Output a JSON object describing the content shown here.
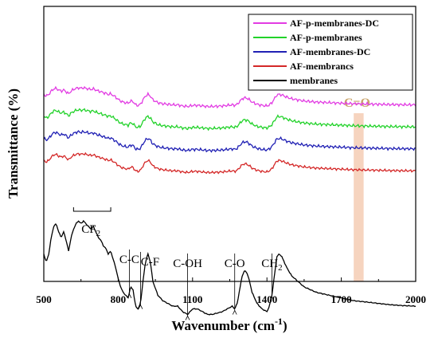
{
  "chart_data": {
    "type": "line",
    "xlabel": "Wavenumber (cm",
    "xlabel_sup": "-1",
    "xlabel_end": ")",
    "ylabel": "Transmittance (%)",
    "xlim": [
      500,
      2000
    ],
    "ylim": [
      0,
      100
    ],
    "x_ticks": [
      500,
      800,
      1100,
      1400,
      1700,
      2000
    ],
    "grid": false,
    "legend_position": "top-right",
    "colors": {
      "AF-p-membranes-DC": "#e23ce3",
      "AF-p-membranes": "#22d22a",
      "AF-membranes-DC": "#2020b4",
      "AF-membrancs": "#d42828",
      "membranes": "#000000",
      "highlight": "#f4cdb4",
      "highlight_label": "#c9a46c"
    },
    "series": [
      {
        "name": "AF-p-membranes-DC",
        "offset": 38,
        "noise": 0.35,
        "scale": 0.2
      },
      {
        "name": "AF-p-membranes",
        "offset": 30,
        "noise": 0.35,
        "scale": 0.2
      },
      {
        "name": "AF-membranes-DC",
        "offset": 22,
        "noise": 0.35,
        "scale": 0.2
      },
      {
        "name": "AF-membrancs",
        "offset": 14,
        "noise": 0.3,
        "scale": 0.2
      },
      {
        "name": "membranes",
        "offset": 0,
        "noise": 0.1,
        "scale": 1
      }
    ],
    "base_spectrum": [
      [
        500,
        30
      ],
      [
        510,
        27
      ],
      [
        520,
        30
      ],
      [
        530,
        36
      ],
      [
        540,
        40
      ],
      [
        550,
        41
      ],
      [
        560,
        38
      ],
      [
        570,
        36
      ],
      [
        580,
        38
      ],
      [
        590,
        35
      ],
      [
        600,
        31
      ],
      [
        610,
        36
      ],
      [
        620,
        39
      ],
      [
        630,
        41
      ],
      [
        640,
        42
      ],
      [
        650,
        41
      ],
      [
        660,
        42
      ],
      [
        670,
        41
      ],
      [
        680,
        40
      ],
      [
        690,
        39
      ],
      [
        700,
        40
      ],
      [
        710,
        38
      ],
      [
        720,
        36
      ],
      [
        730,
        35
      ],
      [
        740,
        33
      ],
      [
        750,
        32
      ],
      [
        760,
        30
      ],
      [
        770,
        31
      ],
      [
        780,
        28
      ],
      [
        790,
        25
      ],
      [
        800,
        21
      ],
      [
        810,
        18
      ],
      [
        820,
        16
      ],
      [
        830,
        15
      ],
      [
        840,
        14
      ],
      [
        850,
        18
      ],
      [
        860,
        17
      ],
      [
        870,
        11
      ],
      [
        880,
        10
      ],
      [
        890,
        12
      ],
      [
        900,
        20
      ],
      [
        910,
        27
      ],
      [
        920,
        30
      ],
      [
        930,
        27
      ],
      [
        940,
        20
      ],
      [
        960,
        15
      ],
      [
        980,
        13
      ],
      [
        1000,
        12
      ],
      [
        1020,
        11
      ],
      [
        1040,
        11
      ],
      [
        1060,
        9
      ],
      [
        1080,
        8
      ],
      [
        1100,
        10
      ],
      [
        1120,
        10
      ],
      [
        1140,
        9
      ],
      [
        1160,
        8
      ],
      [
        1180,
        8
      ],
      [
        1200,
        8.5
      ],
      [
        1220,
        9
      ],
      [
        1240,
        10
      ],
      [
        1260,
        11
      ],
      [
        1270,
        10
      ],
      [
        1280,
        12
      ],
      [
        1290,
        17
      ],
      [
        1300,
        22
      ],
      [
        1310,
        24
      ],
      [
        1320,
        23
      ],
      [
        1330,
        20
      ],
      [
        1340,
        16
      ],
      [
        1360,
        12
      ],
      [
        1380,
        10
      ],
      [
        1400,
        9
      ],
      [
        1410,
        11
      ],
      [
        1420,
        15
      ],
      [
        1430,
        22
      ],
      [
        1440,
        29
      ],
      [
        1450,
        30
      ],
      [
        1460,
        29
      ],
      [
        1480,
        25
      ],
      [
        1500,
        22
      ],
      [
        1550,
        18
      ],
      [
        1600,
        16
      ],
      [
        1650,
        15
      ],
      [
        1700,
        14
      ],
      [
        1750,
        13
      ],
      [
        1800,
        12.5
      ],
      [
        1850,
        12
      ],
      [
        1900,
        11.5
      ],
      [
        1950,
        11.2
      ],
      [
        2000,
        11
      ]
    ],
    "band_labels": [
      {
        "label": "CF",
        "sub": "2",
        "x": 690
      },
      {
        "label": "C-C",
        "x": 845
      },
      {
        "label": "C-F",
        "x": 890
      },
      {
        "label": "C-OH",
        "x": 1080
      },
      {
        "label": "C-O",
        "x": 1270
      },
      {
        "label": "CH",
        "sub": "2",
        "x": 1420
      }
    ],
    "highlight": {
      "label": "C=O",
      "x_from": 1750,
      "x_to": 1790
    }
  }
}
